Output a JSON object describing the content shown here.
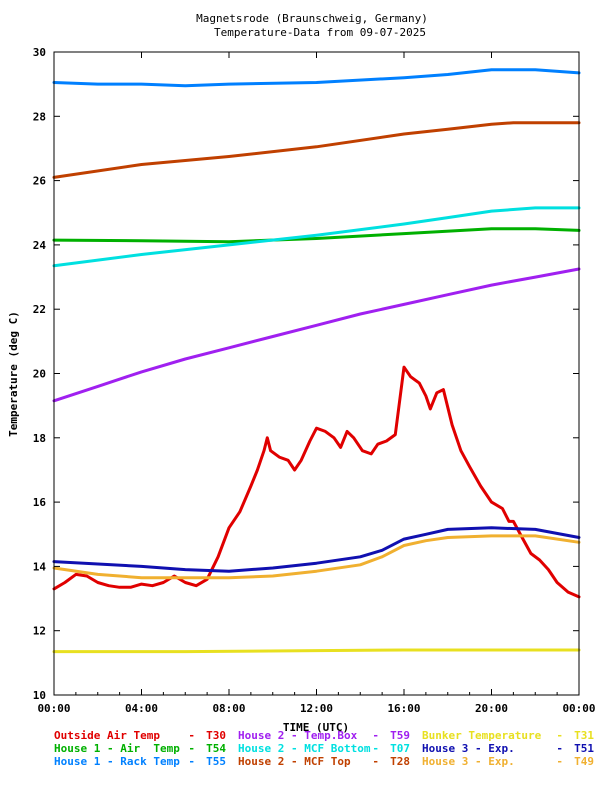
{
  "chart_data": {
    "type": "line",
    "title": "Magnetsrode (Braunschweig, Germany)",
    "subtitle": "Temperature-Data from 09-07-2025",
    "xlabel": "TIME (UTC)",
    "ylabel": "Temperature (deg C)",
    "xlim": [
      0,
      24
    ],
    "ylim": [
      10,
      30
    ],
    "x_ticks": [
      0,
      4,
      8,
      12,
      16,
      20,
      24
    ],
    "x_tick_labels": [
      "00:00",
      "04:00",
      "08:00",
      "12:00",
      "16:00",
      "20:00",
      "00:00"
    ],
    "y_ticks": [
      10,
      12,
      14,
      16,
      18,
      20,
      22,
      24,
      26,
      28,
      30
    ],
    "y_tick_labels": [
      "10",
      "12",
      "14",
      "16",
      "18",
      "20",
      "22",
      "24",
      "26",
      "28",
      "30"
    ],
    "grid": false,
    "legend_position": "bottom",
    "series": [
      {
        "name": "Outside Air Temp",
        "code": "T30",
        "color": "#e00000",
        "points": [
          [
            0,
            13.3
          ],
          [
            0.5,
            13.5
          ],
          [
            1,
            13.75
          ],
          [
            1.5,
            13.7
          ],
          [
            2,
            13.5
          ],
          [
            2.5,
            13.4
          ],
          [
            3,
            13.35
          ],
          [
            3.5,
            13.35
          ],
          [
            4,
            13.45
          ],
          [
            4.5,
            13.4
          ],
          [
            5,
            13.5
          ],
          [
            5.5,
            13.7
          ],
          [
            6,
            13.5
          ],
          [
            6.5,
            13.4
          ],
          [
            7,
            13.6
          ],
          [
            7.5,
            14.3
          ],
          [
            8,
            15.2
          ],
          [
            8.5,
            15.7
          ],
          [
            9,
            16.5
          ],
          [
            9.3,
            17.0
          ],
          [
            9.6,
            17.6
          ],
          [
            9.75,
            18.0
          ],
          [
            9.9,
            17.6
          ],
          [
            10.3,
            17.4
          ],
          [
            10.7,
            17.3
          ],
          [
            11,
            17.0
          ],
          [
            11.3,
            17.3
          ],
          [
            11.7,
            17.9
          ],
          [
            12,
            18.3
          ],
          [
            12.4,
            18.2
          ],
          [
            12.8,
            18.0
          ],
          [
            13.1,
            17.7
          ],
          [
            13.4,
            18.2
          ],
          [
            13.7,
            18.0
          ],
          [
            14.1,
            17.6
          ],
          [
            14.5,
            17.5
          ],
          [
            14.8,
            17.8
          ],
          [
            15.2,
            17.9
          ],
          [
            15.6,
            18.1
          ],
          [
            16,
            20.2
          ],
          [
            16.3,
            19.9
          ],
          [
            16.7,
            19.7
          ],
          [
            17,
            19.3
          ],
          [
            17.2,
            18.9
          ],
          [
            17.5,
            19.4
          ],
          [
            17.8,
            19.5
          ],
          [
            18.2,
            18.4
          ],
          [
            18.6,
            17.6
          ],
          [
            19,
            17.1
          ],
          [
            19.5,
            16.5
          ],
          [
            20,
            16.0
          ],
          [
            20.5,
            15.8
          ],
          [
            20.8,
            15.4
          ],
          [
            21,
            15.4
          ],
          [
            21.4,
            14.9
          ],
          [
            21.8,
            14.4
          ],
          [
            22.2,
            14.2
          ],
          [
            22.6,
            13.9
          ],
          [
            23,
            13.5
          ],
          [
            23.5,
            13.2
          ],
          [
            24,
            13.05
          ]
        ]
      },
      {
        "name": "House 1 - Air  Temp",
        "code": "T54",
        "color": "#00b000",
        "points": [
          [
            0,
            24.15
          ],
          [
            4,
            24.13
          ],
          [
            8,
            24.1
          ],
          [
            12,
            24.2
          ],
          [
            16,
            24.35
          ],
          [
            20,
            24.5
          ],
          [
            22,
            24.5
          ],
          [
            24,
            24.45
          ]
        ]
      },
      {
        "name": "House 1 - Rack Temp",
        "code": "T55",
        "color": "#0080ff",
        "points": [
          [
            0,
            29.05
          ],
          [
            2,
            29.0
          ],
          [
            4,
            29.0
          ],
          [
            6,
            28.95
          ],
          [
            8,
            29.0
          ],
          [
            12,
            29.05
          ],
          [
            16,
            29.2
          ],
          [
            18,
            29.3
          ],
          [
            20,
            29.45
          ],
          [
            22,
            29.45
          ],
          [
            24,
            29.35
          ]
        ]
      },
      {
        "name": "House 2 - Temp.Box",
        "code": "T59",
        "color": "#a020f0",
        "points": [
          [
            0,
            19.15
          ],
          [
            2,
            19.6
          ],
          [
            4,
            20.05
          ],
          [
            6,
            20.45
          ],
          [
            8,
            20.8
          ],
          [
            10,
            21.15
          ],
          [
            12,
            21.5
          ],
          [
            14,
            21.85
          ],
          [
            16,
            22.15
          ],
          [
            18,
            22.45
          ],
          [
            20,
            22.75
          ],
          [
            22,
            23.0
          ],
          [
            24,
            23.25
          ]
        ]
      },
      {
        "name": "House 2 - MCF Bottom",
        "code": "T07",
        "color": "#00e0e0",
        "points": [
          [
            0,
            23.35
          ],
          [
            4,
            23.7
          ],
          [
            8,
            24.0
          ],
          [
            12,
            24.3
          ],
          [
            16,
            24.65
          ],
          [
            18,
            24.85
          ],
          [
            20,
            25.05
          ],
          [
            22,
            25.15
          ],
          [
            24,
            25.15
          ]
        ]
      },
      {
        "name": "House 2 - MCF Top",
        "code": "T28",
        "color": "#c04000",
        "points": [
          [
            0,
            26.1
          ],
          [
            4,
            26.5
          ],
          [
            8,
            26.75
          ],
          [
            12,
            27.05
          ],
          [
            16,
            27.45
          ],
          [
            18,
            27.6
          ],
          [
            20,
            27.75
          ],
          [
            21,
            27.8
          ],
          [
            24,
            27.8
          ]
        ]
      },
      {
        "name": "Bunker Temperature",
        "code": "T31",
        "color": "#e8e020",
        "points": [
          [
            0,
            11.35
          ],
          [
            6,
            11.35
          ],
          [
            12,
            11.38
          ],
          [
            16,
            11.4
          ],
          [
            20,
            11.4
          ],
          [
            24,
            11.4
          ]
        ]
      },
      {
        "name": "House 3 - Exp.",
        "code": "T51",
        "color": "#1010b0",
        "points": [
          [
            0,
            14.15
          ],
          [
            4,
            14.0
          ],
          [
            6,
            13.9
          ],
          [
            8,
            13.85
          ],
          [
            10,
            13.95
          ],
          [
            12,
            14.1
          ],
          [
            14,
            14.3
          ],
          [
            15,
            14.5
          ],
          [
            16,
            14.85
          ],
          [
            17,
            15.0
          ],
          [
            18,
            15.15
          ],
          [
            20,
            15.2
          ],
          [
            22,
            15.15
          ],
          [
            24,
            14.9
          ]
        ]
      },
      {
        "name": "House 3 - Exp.",
        "code": "T49",
        "color": "#f0b030",
        "points": [
          [
            0,
            13.95
          ],
          [
            2,
            13.75
          ],
          [
            4,
            13.65
          ],
          [
            6,
            13.65
          ],
          [
            8,
            13.65
          ],
          [
            10,
            13.7
          ],
          [
            12,
            13.85
          ],
          [
            14,
            14.05
          ],
          [
            15,
            14.3
          ],
          [
            16,
            14.65
          ],
          [
            17,
            14.8
          ],
          [
            18,
            14.9
          ],
          [
            20,
            14.95
          ],
          [
            22,
            14.95
          ],
          [
            24,
            14.75
          ]
        ]
      }
    ]
  },
  "legend_order": [
    [
      0,
      3,
      6
    ],
    [
      1,
      4,
      7
    ],
    [
      2,
      5,
      8
    ]
  ]
}
